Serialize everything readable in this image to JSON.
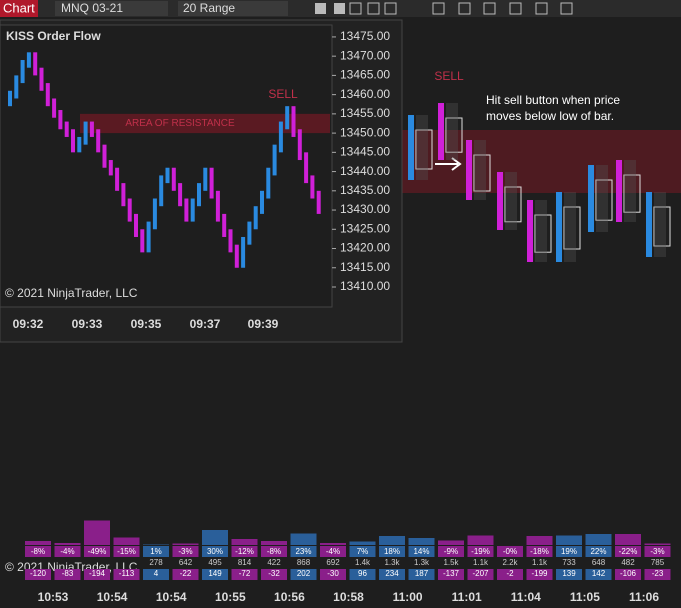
{
  "toolbar": {
    "chart_button": "Chart",
    "instrument": "MNQ 03-21",
    "bar_type": "20 Range"
  },
  "inset": {
    "title": "KISS Order Flow",
    "sell_label": "SELL",
    "resistance_label": "AREA OF RESISTANCE",
    "copyright": "© 2021 NinjaTrader, LLC",
    "ylim": [
      13404.8,
      13478.1
    ],
    "yticks": [
      {
        "value": 13475,
        "label": "13475.00"
      },
      {
        "value": 13470,
        "label": "13470.00"
      },
      {
        "value": 13465,
        "label": "13465.00"
      },
      {
        "value": 13460,
        "label": "13460.00"
      },
      {
        "value": 13455,
        "label": "13455.00"
      },
      {
        "value": 13450,
        "label": "13450.00"
      },
      {
        "value": 13445,
        "label": "13445.00"
      },
      {
        "value": 13440,
        "label": "13440.00"
      },
      {
        "value": 13435,
        "label": "13435.00"
      },
      {
        "value": 13430,
        "label": "13430.00"
      },
      {
        "value": 13425,
        "label": "13425.00"
      },
      {
        "value": 13420,
        "label": "13420.00"
      },
      {
        "value": 13415,
        "label": "13415.00"
      },
      {
        "value": 13410,
        "label": "13410.00"
      }
    ],
    "xticks": [
      "09:32",
      "09:33",
      "09:35",
      "09:37",
      "09:39"
    ],
    "resistance": [
      13455,
      13450
    ],
    "closes": [
      13460,
      13464,
      13468,
      13470,
      13466,
      13462,
      13458,
      13455,
      13452,
      13450,
      13446,
      13448,
      13452,
      13450,
      13446,
      13442,
      13440,
      13436,
      13432,
      13428,
      13424,
      13420,
      13426,
      13432,
      13438,
      13440,
      13436,
      13432,
      13428,
      13432,
      13436,
      13440,
      13434,
      13428,
      13424,
      13420,
      13416,
      13422,
      13426,
      13430,
      13434,
      13440,
      13446,
      13452,
      13456,
      13450,
      13444,
      13438,
      13434,
      13430
    ]
  },
  "main": {
    "sell_label": "SELL",
    "annotation": [
      "Hit sell button when price",
      "moves below low of bar."
    ],
    "copyright": "© 2021 NinjaTrader, LLC",
    "xticks": [
      "10:53",
      "10:54",
      "10:54",
      "10:55",
      "10:56",
      "10:58",
      "11:00",
      "11:01",
      "11:04",
      "11:05",
      "11:06"
    ],
    "delta_pct": [
      -8,
      -4,
      -49,
      -15,
      1,
      -3,
      30,
      -12,
      -8,
      23,
      -4,
      7,
      18,
      14,
      -9,
      -19,
      0,
      -18,
      19,
      22,
      -22,
      -3
    ],
    "delta_pct_labels": [
      "-8%",
      "-4%",
      "-49%",
      "-15%",
      "1%",
      "-3%",
      "30%",
      "-12%",
      "-8%",
      "23%",
      "-4%",
      "7%",
      "18%",
      "14%",
      "-9%",
      "-19%",
      "-0%",
      "-18%",
      "19%",
      "22%",
      "-22%",
      "-3%"
    ],
    "volume": [
      278,
      642,
      495,
      814,
      422,
      868,
      692,
      1400,
      1300,
      1300,
      1500,
      1100,
      2200,
      1100,
      733,
      648,
      482,
      785
    ],
    "volume_labels": [
      "278",
      "642",
      "495",
      "814",
      "422",
      "868",
      "692",
      "1.4k",
      "1.3k",
      "1.3k",
      "1.5k",
      "1.1k",
      "2.2k",
      "1.1k",
      "733",
      "648",
      "482",
      "785"
    ],
    "delta": [
      -120,
      -83,
      -194,
      -113,
      4,
      -22,
      149,
      -72,
      -32,
      202,
      -30,
      96,
      234,
      187,
      -137,
      -207,
      -2,
      -199,
      139,
      142,
      -106,
      -23
    ]
  }
}
